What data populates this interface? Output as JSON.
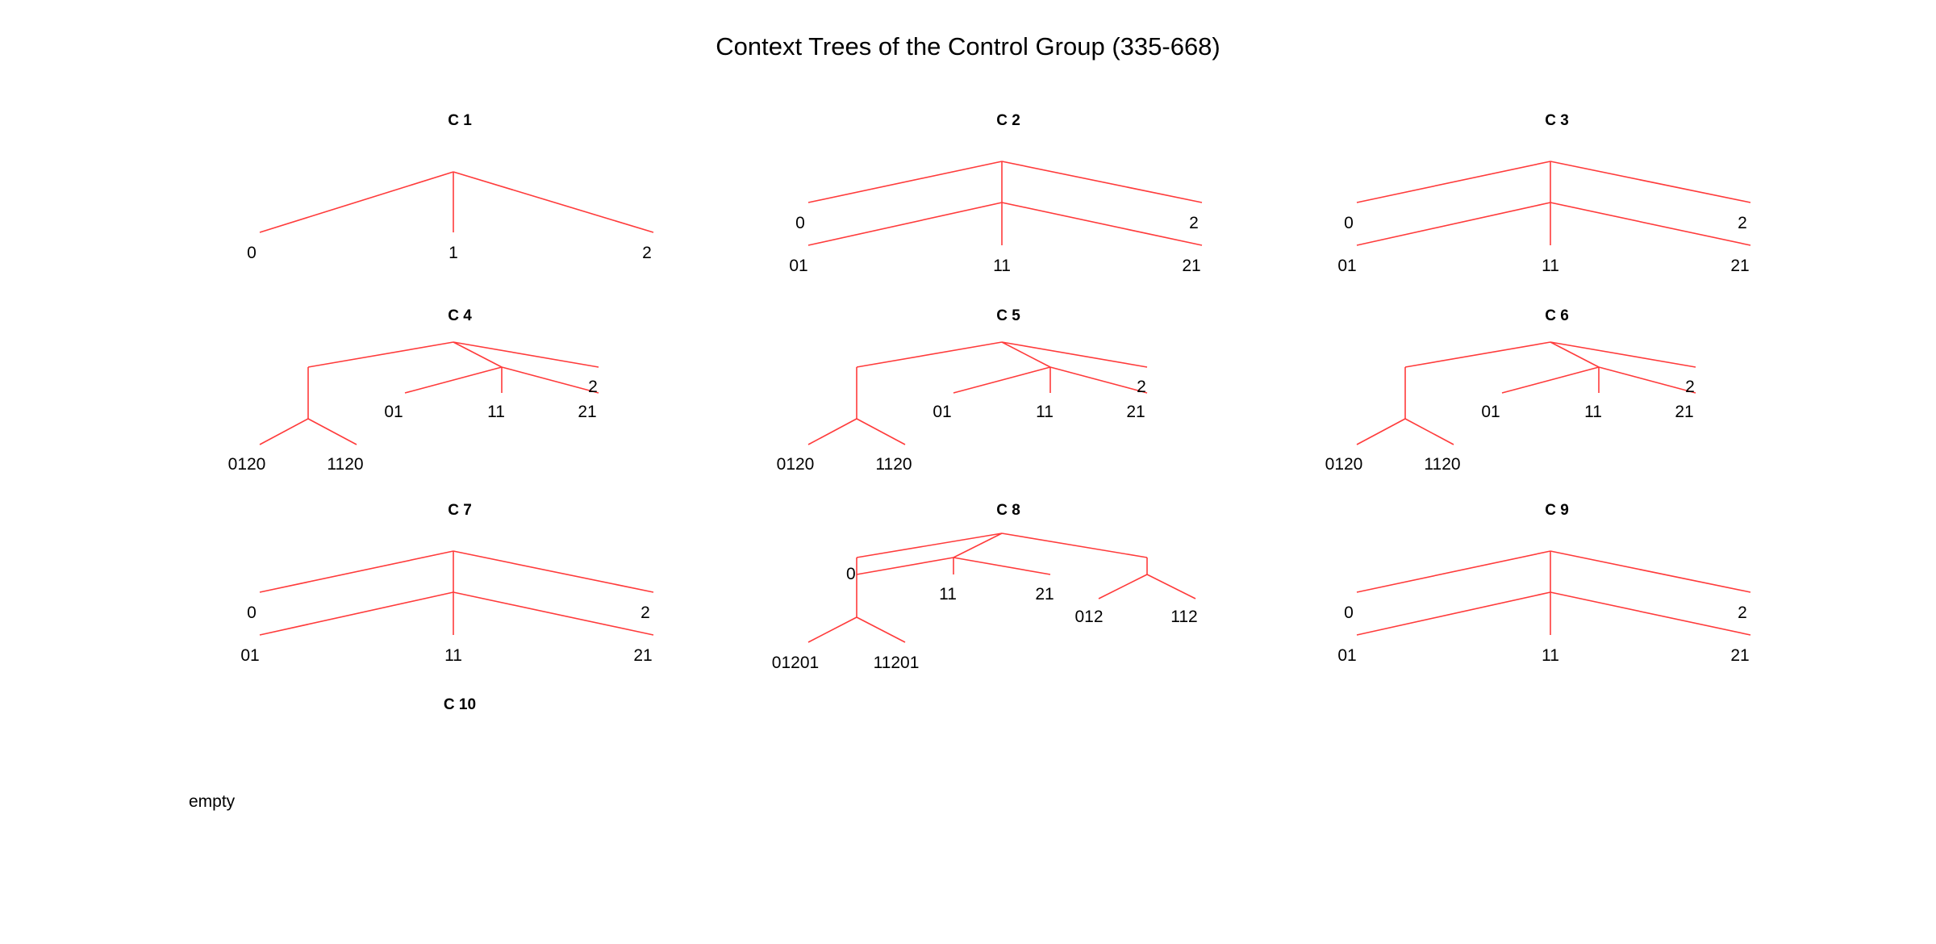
{
  "title": "Context Trees of the Control Group (335-668)",
  "edge_color": "#ff3b3b",
  "panels": [
    {
      "title": "C 1",
      "tree": {
        "children": [
          {
            "label": "0"
          },
          {
            "label": "1"
          },
          {
            "label": "2"
          }
        ]
      }
    },
    {
      "title": "C 2",
      "tree": {
        "children": [
          {
            "label": "0"
          },
          {
            "children": [
              {
                "label": "01"
              },
              {
                "label": "11"
              },
              {
                "label": "21"
              }
            ]
          },
          {
            "label": "2"
          }
        ]
      }
    },
    {
      "title": "C 3",
      "tree": {
        "children": [
          {
            "label": "0"
          },
          {
            "children": [
              {
                "label": "01"
              },
              {
                "label": "11"
              },
              {
                "label": "21"
              }
            ]
          },
          {
            "label": "2"
          }
        ]
      }
    },
    {
      "title": "C 4",
      "tree": {
        "children": [
          {
            "children": [
              {
                "children": [
                  {
                    "label": "0120"
                  },
                  {
                    "label": "1120"
                  }
                ]
              }
            ]
          },
          {
            "children": [
              {
                "label": "01"
              },
              {
                "label": "11"
              },
              {
                "label": "21"
              }
            ]
          },
          {
            "label": "2"
          }
        ]
      }
    },
    {
      "title": "C 5",
      "tree": {
        "children": [
          {
            "children": [
              {
                "children": [
                  {
                    "label": "0120"
                  },
                  {
                    "label": "1120"
                  }
                ]
              }
            ]
          },
          {
            "children": [
              {
                "label": "01"
              },
              {
                "label": "11"
              },
              {
                "label": "21"
              }
            ]
          },
          {
            "label": "2"
          }
        ]
      }
    },
    {
      "title": "C 6",
      "tree": {
        "children": [
          {
            "children": [
              {
                "children": [
                  {
                    "label": "0120"
                  },
                  {
                    "label": "1120"
                  }
                ]
              }
            ]
          },
          {
            "children": [
              {
                "label": "01"
              },
              {
                "label": "11"
              },
              {
                "label": "21"
              }
            ]
          },
          {
            "label": "2"
          }
        ]
      }
    },
    {
      "title": "C 7",
      "tree": {
        "children": [
          {
            "label": "0"
          },
          {
            "children": [
              {
                "label": "01"
              },
              {
                "label": "11"
              },
              {
                "label": "21"
              }
            ]
          },
          {
            "label": "2"
          }
        ]
      }
    },
    {
      "title": "C 8",
      "tree": {
        "children": [
          {
            "label": "0",
            "children": [
              {
                "children": [
                  {
                    "label": "01201"
                  },
                  {
                    "label": "11201"
                  }
                ]
              }
            ]
          },
          {
            "children": [
              {
                "label": "11"
              },
              {
                "label": "21"
              }
            ]
          },
          {
            "children": [
              {
                "label": "012"
              },
              {
                "label": "112"
              }
            ]
          }
        ]
      }
    },
    {
      "title": "C 9",
      "tree": {
        "children": [
          {
            "label": "0"
          },
          {
            "children": [
              {
                "label": "01"
              },
              {
                "label": "11"
              },
              {
                "label": "21"
              }
            ]
          },
          {
            "label": "2"
          }
        ]
      }
    },
    {
      "title": "C 10",
      "empty_text": "empty"
    }
  ]
}
